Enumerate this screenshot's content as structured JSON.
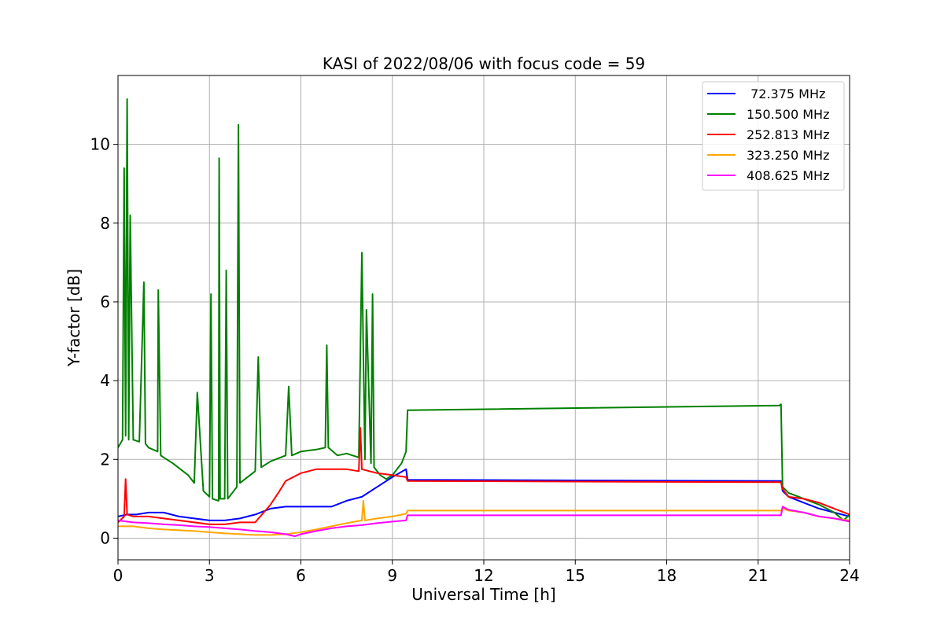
{
  "chart_data": {
    "type": "line",
    "title": "KASI of 2022/08/06 with focus code = 59",
    "xlabel": "Universal Time [h]",
    "ylabel": "Y-factor [dB]",
    "xlim": [
      0,
      24
    ],
    "ylim": [
      -0.55,
      11.75
    ],
    "xticks": [
      0,
      3,
      6,
      9,
      12,
      15,
      18,
      21,
      24
    ],
    "yticks": [
      0,
      2,
      4,
      6,
      8,
      10
    ],
    "grid": true,
    "legend_position": "top-right",
    "series": [
      {
        "name": " 72.375 MHz",
        "color": "#0000ff",
        "x": [
          0.0,
          0.3,
          0.6,
          1.0,
          1.5,
          2.0,
          2.5,
          3.0,
          3.5,
          4.0,
          4.5,
          5.0,
          5.5,
          6.0,
          6.5,
          7.0,
          7.5,
          8.0,
          8.5,
          9.0,
          9.45,
          9.5,
          21.75,
          21.8,
          22.0,
          22.5,
          23.0,
          23.5,
          24.0
        ],
        "y": [
          0.55,
          0.6,
          0.6,
          0.65,
          0.65,
          0.55,
          0.5,
          0.45,
          0.45,
          0.5,
          0.6,
          0.75,
          0.8,
          0.8,
          0.8,
          0.8,
          0.95,
          1.05,
          1.3,
          1.55,
          1.75,
          1.48,
          1.45,
          1.2,
          1.05,
          0.9,
          0.75,
          0.65,
          0.55
        ]
      },
      {
        "name": "150.500 MHz",
        "color": "#008000",
        "x": [
          0.0,
          0.15,
          0.2,
          0.25,
          0.3,
          0.35,
          0.4,
          0.5,
          0.7,
          0.85,
          0.9,
          1.0,
          1.3,
          1.32,
          1.4,
          1.8,
          2.3,
          2.5,
          2.6,
          2.8,
          3.0,
          3.05,
          3.1,
          3.3,
          3.32,
          3.35,
          3.5,
          3.55,
          3.6,
          3.9,
          3.95,
          4.0,
          4.5,
          4.6,
          4.7,
          5.0,
          5.5,
          5.6,
          5.7,
          6.0,
          6.5,
          6.8,
          6.85,
          6.9,
          7.2,
          7.5,
          7.9,
          8.0,
          8.1,
          8.15,
          8.3,
          8.35,
          8.4,
          8.6,
          8.8,
          9.0,
          9.3,
          9.45,
          9.5,
          21.7,
          21.75,
          21.8,
          22.0,
          22.5,
          23.0,
          23.5,
          23.8,
          24.0
        ],
        "y": [
          2.3,
          2.5,
          9.4,
          2.6,
          11.15,
          2.5,
          8.2,
          2.5,
          2.45,
          6.5,
          2.4,
          2.3,
          2.2,
          6.3,
          2.1,
          1.9,
          1.6,
          1.4,
          3.7,
          1.2,
          1.05,
          6.2,
          1.0,
          0.95,
          9.65,
          1.0,
          1.0,
          6.8,
          1.0,
          1.3,
          10.5,
          1.4,
          1.7,
          4.6,
          1.8,
          1.95,
          2.1,
          3.85,
          2.1,
          2.2,
          2.25,
          2.3,
          4.9,
          2.3,
          2.1,
          2.15,
          2.05,
          7.25,
          2.0,
          5.8,
          1.9,
          6.2,
          1.8,
          1.6,
          1.5,
          1.6,
          1.9,
          2.2,
          3.25,
          3.37,
          3.4,
          1.3,
          1.15,
          1.0,
          0.85,
          0.65,
          0.45,
          0.6
        ]
      },
      {
        "name": "252.813 MHz",
        "color": "#ff0000",
        "x": [
          0.0,
          0.2,
          0.25,
          0.3,
          0.5,
          1.0,
          1.5,
          2.0,
          2.5,
          3.0,
          3.5,
          4.0,
          4.5,
          5.0,
          5.3,
          5.5,
          6.0,
          6.5,
          7.0,
          7.5,
          7.9,
          7.95,
          8.0,
          8.5,
          9.0,
          9.45,
          9.5,
          21.75,
          21.8,
          22.0,
          22.5,
          23.0,
          23.5,
          24.0
        ],
        "y": [
          0.4,
          0.55,
          1.5,
          0.6,
          0.55,
          0.55,
          0.5,
          0.45,
          0.4,
          0.35,
          0.35,
          0.4,
          0.4,
          0.85,
          1.2,
          1.45,
          1.65,
          1.75,
          1.75,
          1.75,
          1.7,
          2.8,
          1.75,
          1.65,
          1.6,
          1.55,
          1.45,
          1.42,
          1.25,
          1.05,
          1.0,
          0.9,
          0.75,
          0.6
        ]
      },
      {
        "name": "323.250 MHz",
        "color": "#ffa500",
        "x": [
          0.0,
          0.5,
          1.0,
          1.5,
          2.0,
          2.5,
          3.0,
          3.5,
          4.0,
          4.5,
          5.0,
          5.5,
          6.0,
          6.5,
          7.0,
          7.5,
          8.0,
          8.05,
          8.1,
          8.5,
          9.0,
          9.45,
          9.5,
          21.75,
          21.8,
          22.0,
          22.5,
          23.0,
          23.5,
          24.0
        ],
        "y": [
          0.3,
          0.3,
          0.25,
          0.22,
          0.2,
          0.18,
          0.15,
          0.12,
          0.1,
          0.08,
          0.08,
          0.1,
          0.15,
          0.22,
          0.3,
          0.38,
          0.45,
          0.95,
          0.45,
          0.5,
          0.55,
          0.62,
          0.7,
          0.7,
          0.75,
          0.7,
          0.65,
          0.55,
          0.5,
          0.45
        ]
      },
      {
        "name": "408.625 MHz",
        "color": "#ff00ff",
        "x": [
          0.0,
          0.5,
          1.0,
          1.5,
          2.0,
          2.5,
          3.0,
          3.5,
          4.0,
          4.5,
          5.0,
          5.5,
          5.8,
          6.0,
          6.5,
          7.0,
          7.5,
          8.0,
          8.5,
          9.0,
          9.45,
          9.5,
          21.75,
          21.8,
          22.0,
          22.5,
          23.0,
          23.5,
          24.0
        ],
        "y": [
          0.45,
          0.4,
          0.38,
          0.35,
          0.33,
          0.3,
          0.28,
          0.25,
          0.22,
          0.18,
          0.15,
          0.1,
          0.05,
          0.1,
          0.18,
          0.25,
          0.3,
          0.33,
          0.38,
          0.42,
          0.45,
          0.58,
          0.58,
          0.8,
          0.72,
          0.65,
          0.55,
          0.5,
          0.42
        ]
      }
    ]
  }
}
